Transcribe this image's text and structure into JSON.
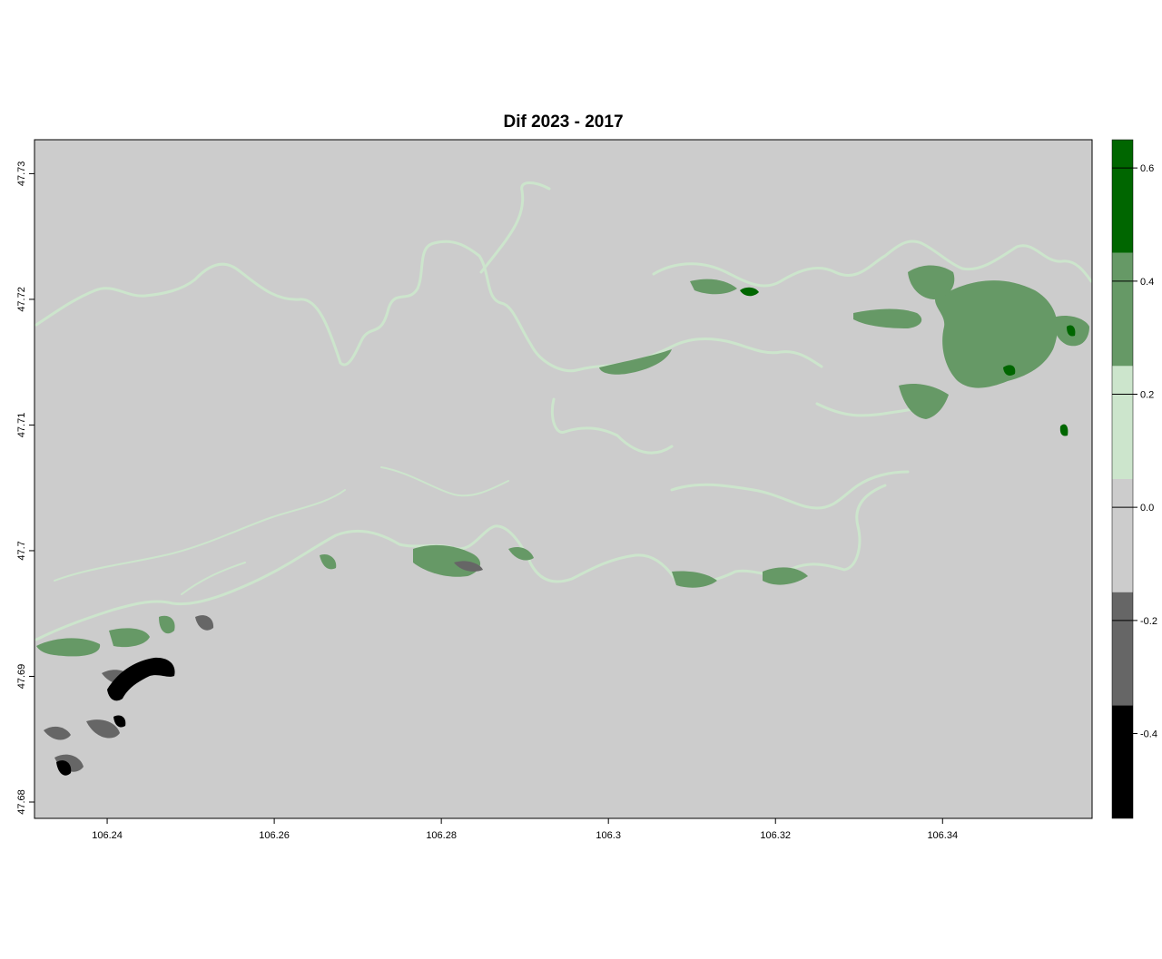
{
  "chart_data": {
    "type": "heatmap",
    "title": "Dif 2023 - 2017",
    "xlabel": "",
    "ylabel": "",
    "x_ticks": [
      "106.24",
      "106.26",
      "106.28",
      "106.3",
      "106.32",
      "106.34"
    ],
    "x_tick_values": [
      106.24,
      106.26,
      106.28,
      106.3,
      106.32,
      106.34
    ],
    "y_ticks": [
      "47.68",
      "47.69",
      "47.7",
      "47.71",
      "47.72",
      "47.73"
    ],
    "y_tick_values": [
      47.68,
      47.69,
      47.7,
      47.71,
      47.72,
      47.73
    ],
    "xlim": [
      106.2313,
      106.3579
    ],
    "ylim": [
      47.6787,
      47.7327
    ],
    "legend": {
      "position": "right",
      "ticks": [
        "-0.4",
        "-0.2",
        "0.0",
        "0.2",
        "0.4",
        "0.6"
      ],
      "tick_values": [
        -0.4,
        -0.2,
        0.0,
        0.2,
        0.4,
        0.6
      ],
      "range": [
        -0.55,
        0.65
      ],
      "breaks": [
        {
          "from": -0.55,
          "to": -0.35,
          "color": "#000000"
        },
        {
          "from": -0.35,
          "to": -0.15,
          "color": "#666666"
        },
        {
          "from": -0.15,
          "to": 0.05,
          "color": "#cccccc"
        },
        {
          "from": 0.05,
          "to": 0.25,
          "color": "#cce5cc"
        },
        {
          "from": 0.25,
          "to": 0.45,
          "color": "#669966"
        },
        {
          "from": 0.45,
          "to": 0.65,
          "color": "#006600"
        }
      ]
    },
    "background_value_color": "#cccccc",
    "grid": false
  }
}
